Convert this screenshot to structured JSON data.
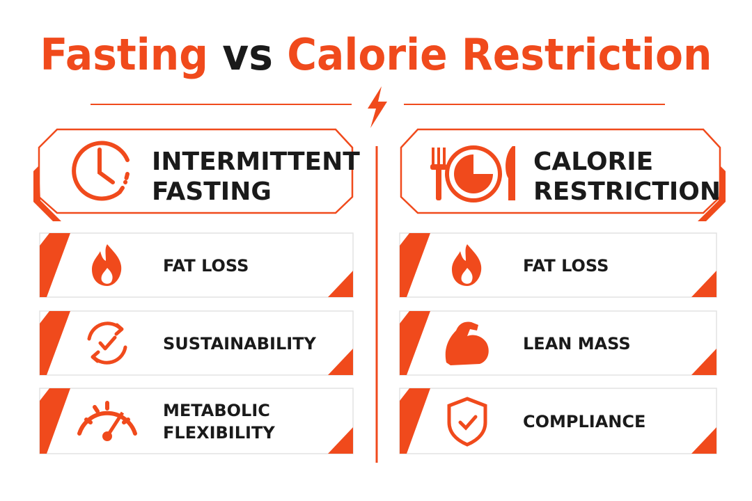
{
  "title": {
    "part1": "Fasting",
    "part2": "vs",
    "part3": "Calorie Restriction"
  },
  "columns": [
    {
      "header": [
        "INTERMITTENT",
        "FASTING"
      ],
      "items": [
        [
          "FAT LOSS"
        ],
        [
          "SUSTAINABILITY"
        ],
        [
          "METABOLIC",
          "FLEXIBILITY"
        ]
      ]
    },
    {
      "header": [
        "CALORIE",
        "RESTRICTION"
      ],
      "items": [
        [
          "FAT LOSS"
        ],
        [
          "LEAN MASS"
        ],
        [
          "COMPLIANCE"
        ]
      ]
    }
  ]
}
